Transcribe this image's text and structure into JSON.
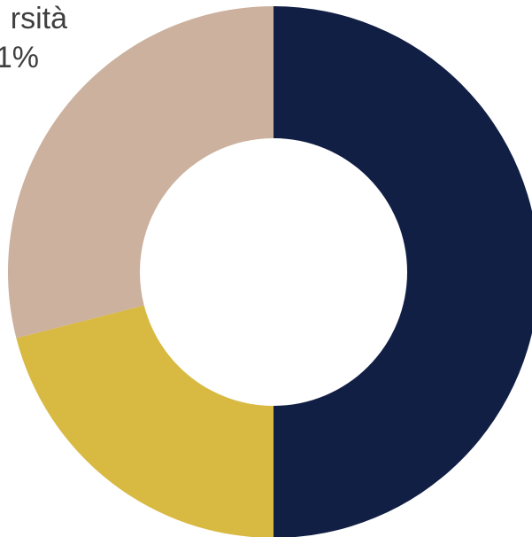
{
  "chart_data": {
    "type": "pie",
    "slices": [
      {
        "value": 50,
        "color": "#111f45"
      },
      {
        "value": 21,
        "color": "#d8b942"
      },
      {
        "value": 29,
        "color": "#cbb19e"
      }
    ],
    "visible_labels": {
      "name_fragment": "rsità",
      "percent_fragment": "1%"
    }
  }
}
